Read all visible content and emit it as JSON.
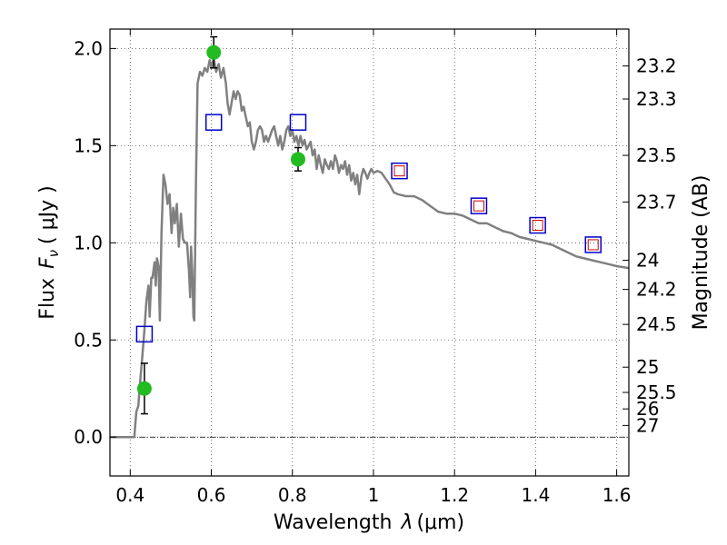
{
  "chart_data": {
    "type": "scatter",
    "xlabel_prefix": "Wavelength",
    "xlabel_lambda": "λ",
    "xlabel_unit": "(μm)",
    "ylabel_prefix": "Flux",
    "ylabel_symbol": "F",
    "ylabel_sub": "ν",
    "ylabel_unit": "( μJy )",
    "y2label": "Magnitude (AB)",
    "xlim": [
      0.35,
      1.63
    ],
    "ylim": [
      -0.2,
      2.1
    ],
    "x_ticks": [
      0.4,
      0.6,
      0.8,
      1.0,
      1.2,
      1.4,
      1.6
    ],
    "x_tick_labels": [
      "0.4",
      "0.6",
      "0.8",
      "1",
      "1.2",
      "1.4",
      "1.6"
    ],
    "y_ticks": [
      0.0,
      0.5,
      1.0,
      1.5,
      2.0
    ],
    "y_tick_labels": [
      "0.0",
      "0.5",
      "1.0",
      "1.5",
      "2.0"
    ],
    "y2_ticks": [
      {
        "label": "23.2",
        "flux": 1.91
      },
      {
        "label": "23.3",
        "flux": 1.74
      },
      {
        "label": "23.5",
        "flux": 1.45
      },
      {
        "label": "23.7",
        "flux": 1.21
      },
      {
        "label": "24",
        "flux": 0.91
      },
      {
        "label": "24.2",
        "flux": 0.76
      },
      {
        "label": "24.5",
        "flux": 0.58
      },
      {
        "label": "25",
        "flux": 0.36
      },
      {
        "label": "25.5",
        "flux": 0.23
      },
      {
        "label": "26",
        "flux": 0.145
      },
      {
        "label": "27",
        "flux": 0.06
      }
    ],
    "grid": true,
    "zero_line": true,
    "colors": {
      "sed_line": "#808080",
      "detection": "#22bb22",
      "model_box": "#0000cc",
      "upper_box": "#cc0000",
      "errorbar": "#000000"
    },
    "series": [
      {
        "kind": "line",
        "points": [
          [
            0.35,
            0.0
          ],
          [
            0.41,
            0.0
          ],
          [
            0.415,
            0.13
          ],
          [
            0.42,
            0.16
          ],
          [
            0.425,
            0.3
          ],
          [
            0.43,
            0.42
          ],
          [
            0.435,
            0.55
          ],
          [
            0.44,
            0.7
          ],
          [
            0.445,
            0.78
          ],
          [
            0.448,
            0.62
          ],
          [
            0.452,
            0.82
          ],
          [
            0.455,
            0.82
          ],
          [
            0.46,
            0.9
          ],
          [
            0.463,
            0.78
          ],
          [
            0.466,
            0.92
          ],
          [
            0.47,
            0.88
          ],
          [
            0.473,
            0.6
          ],
          [
            0.477,
            1.05
          ],
          [
            0.482,
            1.35
          ],
          [
            0.487,
            1.3
          ],
          [
            0.492,
            1.2
          ],
          [
            0.497,
            1.25
          ],
          [
            0.502,
            1.05
          ],
          [
            0.506,
            1.18
          ],
          [
            0.51,
            1.1
          ],
          [
            0.515,
            1.2
          ],
          [
            0.52,
            0.98
          ],
          [
            0.525,
            1.15
          ],
          [
            0.53,
            1.02
          ],
          [
            0.535,
            1.0
          ],
          [
            0.54,
            1.0
          ],
          [
            0.545,
            0.85
          ],
          [
            0.548,
            0.72
          ],
          [
            0.55,
            0.98
          ],
          [
            0.553,
            0.85
          ],
          [
            0.556,
            0.62
          ],
          [
            0.558,
            0.6
          ],
          [
            0.562,
            1.3
          ],
          [
            0.566,
            1.82
          ],
          [
            0.572,
            1.88
          ],
          [
            0.578,
            1.86
          ],
          [
            0.584,
            1.9
          ],
          [
            0.59,
            1.88
          ],
          [
            0.596,
            1.94
          ],
          [
            0.6,
            1.9
          ],
          [
            0.606,
            1.95
          ],
          [
            0.612,
            1.88
          ],
          [
            0.618,
            1.92
          ],
          [
            0.624,
            1.85
          ],
          [
            0.63,
            1.9
          ],
          [
            0.636,
            1.82
          ],
          [
            0.64,
            1.72
          ],
          [
            0.645,
            1.66
          ],
          [
            0.65,
            1.72
          ],
          [
            0.655,
            1.78
          ],
          [
            0.66,
            1.74
          ],
          [
            0.665,
            1.78
          ],
          [
            0.67,
            1.76
          ],
          [
            0.675,
            1.68
          ],
          [
            0.68,
            1.7
          ],
          [
            0.685,
            1.65
          ],
          [
            0.69,
            1.6
          ],
          [
            0.695,
            1.62
          ],
          [
            0.7,
            1.52
          ],
          [
            0.705,
            1.48
          ],
          [
            0.71,
            1.52
          ],
          [
            0.715,
            1.58
          ],
          [
            0.72,
            1.6
          ],
          [
            0.725,
            1.58
          ],
          [
            0.73,
            1.52
          ],
          [
            0.735,
            1.55
          ],
          [
            0.74,
            1.52
          ],
          [
            0.745,
            1.55
          ],
          [
            0.75,
            1.58
          ],
          [
            0.755,
            1.6
          ],
          [
            0.76,
            1.55
          ],
          [
            0.765,
            1.5
          ],
          [
            0.77,
            1.55
          ],
          [
            0.775,
            1.48
          ],
          [
            0.78,
            1.52
          ],
          [
            0.785,
            1.58
          ],
          [
            0.79,
            1.6
          ],
          [
            0.795,
            1.55
          ],
          [
            0.8,
            1.58
          ],
          [
            0.805,
            1.52
          ],
          [
            0.81,
            1.55
          ],
          [
            0.815,
            1.5
          ],
          [
            0.82,
            1.55
          ],
          [
            0.825,
            1.5
          ],
          [
            0.83,
            1.53
          ],
          [
            0.835,
            1.48
          ],
          [
            0.84,
            1.5
          ],
          [
            0.845,
            1.52
          ],
          [
            0.85,
            1.45
          ],
          [
            0.855,
            1.48
          ],
          [
            0.86,
            1.38
          ],
          [
            0.865,
            1.45
          ],
          [
            0.87,
            1.4
          ],
          [
            0.875,
            1.36
          ],
          [
            0.88,
            1.43
          ],
          [
            0.885,
            1.4
          ],
          [
            0.89,
            1.38
          ],
          [
            0.895,
            1.42
          ],
          [
            0.9,
            1.38
          ],
          [
            0.905,
            1.45
          ],
          [
            0.91,
            1.42
          ],
          [
            0.915,
            1.36
          ],
          [
            0.92,
            1.4
          ],
          [
            0.925,
            1.38
          ],
          [
            0.93,
            1.42
          ],
          [
            0.935,
            1.35
          ],
          [
            0.94,
            1.4
          ],
          [
            0.945,
            1.32
          ],
          [
            0.95,
            1.36
          ],
          [
            0.955,
            1.3
          ],
          [
            0.96,
            1.35
          ],
          [
            0.965,
            1.25
          ],
          [
            0.97,
            1.34
          ],
          [
            0.975,
            1.38
          ],
          [
            0.98,
            1.36
          ],
          [
            0.985,
            1.33
          ],
          [
            0.99,
            1.36
          ],
          [
            0.995,
            1.38
          ],
          [
            1.0,
            1.36
          ],
          [
            1.01,
            1.37
          ],
          [
            1.02,
            1.36
          ],
          [
            1.03,
            1.33
          ],
          [
            1.04,
            1.3
          ],
          [
            1.05,
            1.26
          ],
          [
            1.06,
            1.25
          ],
          [
            1.08,
            1.24
          ],
          [
            1.1,
            1.24
          ],
          [
            1.12,
            1.22
          ],
          [
            1.14,
            1.19
          ],
          [
            1.16,
            1.16
          ],
          [
            1.18,
            1.15
          ],
          [
            1.2,
            1.15
          ],
          [
            1.22,
            1.14
          ],
          [
            1.24,
            1.12
          ],
          [
            1.26,
            1.1
          ],
          [
            1.28,
            1.1
          ],
          [
            1.3,
            1.08
          ],
          [
            1.32,
            1.06
          ],
          [
            1.34,
            1.05
          ],
          [
            1.36,
            1.03
          ],
          [
            1.38,
            1.02
          ],
          [
            1.4,
            1.01
          ],
          [
            1.42,
            1.0
          ],
          [
            1.44,
            0.99
          ],
          [
            1.46,
            0.97
          ],
          [
            1.48,
            0.95
          ],
          [
            1.5,
            0.93
          ],
          [
            1.52,
            0.92
          ],
          [
            1.54,
            0.91
          ],
          [
            1.56,
            0.9
          ],
          [
            1.58,
            0.89
          ],
          [
            1.6,
            0.88
          ],
          [
            1.63,
            0.87
          ]
        ]
      },
      {
        "kind": "detection",
        "points": [
          {
            "x": 0.435,
            "y": 0.25,
            "err": 0.13
          },
          {
            "x": 0.606,
            "y": 1.98,
            "err": 0.08
          },
          {
            "x": 0.814,
            "y": 1.43,
            "err": 0.06
          }
        ]
      },
      {
        "kind": "model_box",
        "points": [
          {
            "x": 0.435,
            "y": 0.53
          },
          {
            "x": 0.606,
            "y": 1.62
          },
          {
            "x": 0.814,
            "y": 1.62
          },
          {
            "x": 1.064,
            "y": 1.37
          },
          {
            "x": 1.26,
            "y": 1.19
          },
          {
            "x": 1.405,
            "y": 1.09
          },
          {
            "x": 1.542,
            "y": 0.99
          }
        ]
      },
      {
        "kind": "upper_box",
        "points": [
          {
            "x": 1.064,
            "y": 1.37
          },
          {
            "x": 1.26,
            "y": 1.19
          },
          {
            "x": 1.405,
            "y": 1.09
          },
          {
            "x": 1.542,
            "y": 0.99
          }
        ]
      }
    ]
  }
}
